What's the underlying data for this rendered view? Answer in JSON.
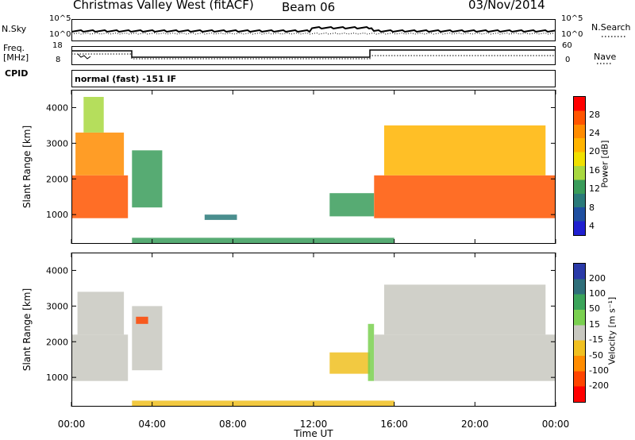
{
  "header": {
    "station": "Christmas Valley West (fitACF)",
    "beam": "Beam 06",
    "date": "03/Nov/2014"
  },
  "strip_labels": {
    "nsky": "N.Sky",
    "nsearch": "N.Search",
    "freq": "Freq.",
    "freq_unit": "[MHz]",
    "nave": "Nave",
    "cpid": "CPID",
    "cpid_text": "normal (fast) -151 IF",
    "nsky_ticks": [
      "10^5",
      "10^0"
    ],
    "nsearch_ticks": [
      "10^5",
      "10^0"
    ],
    "freq_ticks": [
      "18",
      "8"
    ],
    "nave_ticks": [
      "60",
      "0"
    ]
  },
  "power_colorbar": {
    "label": "Power [dB]",
    "ticks": [
      "28",
      "24",
      "20",
      "16",
      "12",
      "8",
      "4"
    ],
    "colors": [
      "#ff0000",
      "#ff5500",
      "#ff8c00",
      "#ffb400",
      "#f0e000",
      "#a8d840",
      "#3a9c5a",
      "#2a7a7a",
      "#1f4fa0",
      "#2020d0"
    ]
  },
  "velocity_colorbar": {
    "label": "Velocity [m s⁻¹]",
    "ticks": [
      "200",
      "100",
      "50",
      "15",
      "-15",
      "-50",
      "-100",
      "-200"
    ],
    "colors": [
      "#2a3aa8",
      "#2f6f7a",
      "#3ba45a",
      "#7ad050",
      "#c8c8c0",
      "#f0c020",
      "#ff8c00",
      "#ff4500",
      "#ff0000"
    ]
  },
  "chart_data": [
    {
      "type": "heatmap",
      "title": "",
      "xlabel": "Time UT",
      "ylabel": "Slant Range [km]",
      "x_ticks": [
        "00:00",
        "04:00",
        "08:00",
        "12:00",
        "16:00",
        "20:00",
        "00:00"
      ],
      "y_ticks": [
        "1000",
        "2000",
        "3000",
        "4000"
      ],
      "xlim_hours": [
        0,
        24
      ],
      "ylim_km": [
        180,
        4500
      ],
      "quantity": "Power [dB]",
      "regions": [
        {
          "t0": 0.0,
          "t1": 2.8,
          "r0": 900,
          "r1": 2100,
          "value": 24
        },
        {
          "t0": 0.2,
          "t1": 2.6,
          "r0": 2100,
          "r1": 3300,
          "value": 22
        },
        {
          "t0": 0.6,
          "t1": 1.6,
          "r0": 3300,
          "r1": 4300,
          "value": 14
        },
        {
          "t0": 3.0,
          "t1": 4.5,
          "r0": 1200,
          "r1": 2800,
          "value": 10
        },
        {
          "t0": 6.6,
          "t1": 8.2,
          "r0": 850,
          "r1": 1000,
          "value": 6
        },
        {
          "t0": 12.8,
          "t1": 15.0,
          "r0": 950,
          "r1": 1600,
          "value": 8
        },
        {
          "t0": 15.0,
          "t1": 24.0,
          "r0": 900,
          "r1": 2100,
          "value": 26
        },
        {
          "t0": 15.5,
          "t1": 23.5,
          "r0": 2100,
          "r1": 3500,
          "value": 18
        },
        {
          "t0": 3.0,
          "t1": 16.0,
          "r0": 200,
          "r1": 350,
          "value": 8
        }
      ]
    },
    {
      "type": "heatmap",
      "title": "",
      "xlabel": "Time UT",
      "ylabel": "Slant Range [km]",
      "x_ticks": [
        "00:00",
        "04:00",
        "08:00",
        "12:00",
        "16:00",
        "20:00",
        "00:00"
      ],
      "y_ticks": [
        "1000",
        "2000",
        "3000",
        "4000"
      ],
      "xlim_hours": [
        0,
        24
      ],
      "ylim_km": [
        180,
        4500
      ],
      "quantity": "Velocity [m s-1]",
      "regions": [
        {
          "t0": 0.0,
          "t1": 2.8,
          "r0": 900,
          "r1": 2200,
          "value": 0
        },
        {
          "t0": 0.3,
          "t1": 2.6,
          "r0": 2200,
          "r1": 3400,
          "value": 0
        },
        {
          "t0": 3.0,
          "t1": 4.5,
          "r0": 1200,
          "r1": 3000,
          "value": 0
        },
        {
          "t0": 3.2,
          "t1": 3.8,
          "r0": 2500,
          "r1": 2700,
          "value": -150
        },
        {
          "t0": 12.8,
          "t1": 14.8,
          "r0": 1100,
          "r1": 1700,
          "value": -40
        },
        {
          "t0": 14.7,
          "t1": 15.0,
          "r0": 900,
          "r1": 2500,
          "value": 40
        },
        {
          "t0": 15.0,
          "t1": 24.0,
          "r0": 900,
          "r1": 2200,
          "value": 0
        },
        {
          "t0": 15.5,
          "t1": 23.5,
          "r0": 2200,
          "r1": 3600,
          "value": 0
        },
        {
          "t0": 3.0,
          "t1": 16.0,
          "r0": 200,
          "r1": 350,
          "value": -40
        }
      ]
    }
  ]
}
